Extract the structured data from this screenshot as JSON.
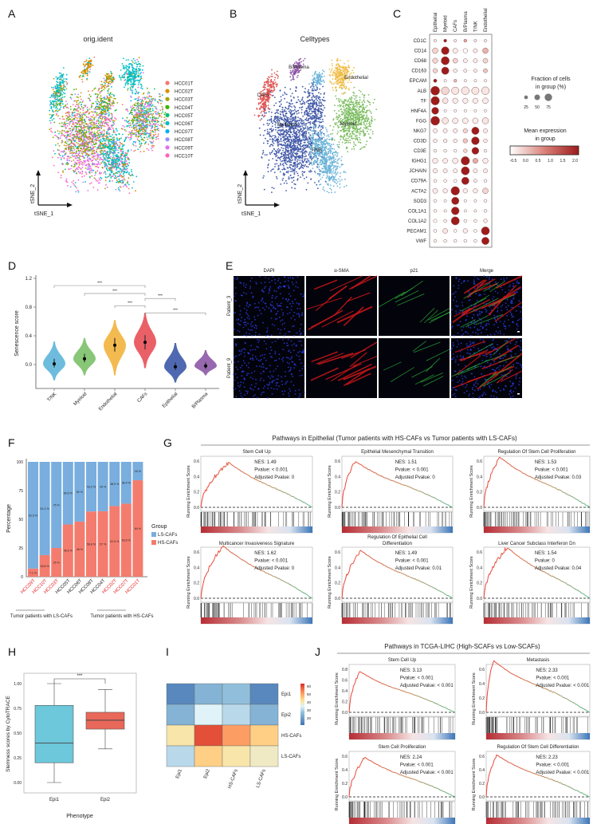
{
  "panel_labels": [
    "A",
    "B",
    "C",
    "D",
    "E",
    "F",
    "G",
    "H",
    "I",
    "J"
  ],
  "chart_data": [
    {
      "type": "scatter",
      "title": "orig.ident",
      "xlabel": "tSNE_1",
      "ylabel": "tSNE_2",
      "legend": [
        {
          "name": "HCC01T",
          "color": "#F8766D"
        },
        {
          "name": "HCC02T",
          "color": "#D89000"
        },
        {
          "name": "HCC03T",
          "color": "#A3A500"
        },
        {
          "name": "HCC04T",
          "color": "#39B600"
        },
        {
          "name": "HCC05T",
          "color": "#00BF7D"
        },
        {
          "name": "HCC06T",
          "color": "#00BFC4"
        },
        {
          "name": "HCC07T",
          "color": "#00B0F6"
        },
        {
          "name": "HCC08T",
          "color": "#9590FF"
        },
        {
          "name": "HCC09T",
          "color": "#E76BF3"
        },
        {
          "name": "HCC10T",
          "color": "#FF62BC"
        }
      ]
    },
    {
      "type": "scatter",
      "title": "Celltypes",
      "xlabel": "tSNE_1",
      "ylabel": "tSNE_2",
      "clusters": [
        {
          "name": "CAFs",
          "color": "#E05555"
        },
        {
          "name": "Epithelial",
          "color": "#4159A8"
        },
        {
          "name": "T/NK",
          "color": "#6CB4D8"
        },
        {
          "name": "Myeloid",
          "color": "#7DBD62"
        },
        {
          "name": "Endothelial",
          "color": "#F0BE4A"
        },
        {
          "name": "B/Plasma",
          "color": "#8E55A8"
        }
      ]
    },
    {
      "type": "dotplot",
      "groups": [
        "Epithelial",
        "Myeloid",
        "CAFs",
        "B/Plasma",
        "T/NK",
        "Endothelial"
      ],
      "genes": [
        "CD1C",
        "CD14",
        "CD68",
        "CD163",
        "EPCAM",
        "ALB",
        "TF",
        "HNF4A",
        "FGG",
        "NKG7",
        "CD3D",
        "CD3E",
        "IGHG1",
        "JCHAIN",
        "CD79A",
        "ACTA2",
        "SOD3",
        "COL1A1",
        "COL1A2",
        "PECAM1",
        "VWF"
      ],
      "expression": [
        [
          -0.3,
          2,
          -0.3,
          0.6,
          -0.3,
          -0.3
        ],
        [
          0,
          2,
          -0.3,
          -0.5,
          -0.3,
          0.4
        ],
        [
          0,
          2,
          0,
          -0.3,
          -0.3,
          0
        ],
        [
          0,
          2,
          -0.3,
          -0.3,
          -0.3,
          0.2
        ],
        [
          2,
          -0.5,
          0.3,
          -0.5,
          -0.5,
          -0.5
        ],
        [
          2,
          0,
          -0.2,
          -0.2,
          -0.2,
          -0.2
        ],
        [
          2,
          -0.2,
          -0.3,
          -0.3,
          -0.3,
          -0.3
        ],
        [
          2,
          -0.5,
          -0.5,
          -0.5,
          -0.5,
          -0.5
        ],
        [
          2,
          -0.2,
          -0.3,
          -0.3,
          -0.3,
          -0.2
        ],
        [
          -0.3,
          -0.3,
          -0.3,
          0,
          2,
          -0.3
        ],
        [
          -0.3,
          -0.3,
          -0.3,
          0.2,
          2,
          -0.3
        ],
        [
          -0.5,
          -0.5,
          -0.5,
          0,
          2,
          -0.5
        ],
        [
          -0.3,
          -0.3,
          -0.3,
          2,
          0.5,
          -0.3
        ],
        [
          -0.3,
          -0.3,
          -0.3,
          2,
          -0.3,
          -0.3
        ],
        [
          -0.5,
          -0.5,
          -0.5,
          2,
          -0.3,
          -0.5
        ],
        [
          -0.3,
          -0.3,
          2,
          -0.3,
          -0.3,
          0
        ],
        [
          -0.5,
          -0.5,
          2,
          -0.5,
          -0.5,
          -0.5
        ],
        [
          -0.5,
          -0.5,
          2,
          -0.5,
          -0.5,
          -0.5
        ],
        [
          -0.5,
          -0.5,
          2,
          -0.5,
          -0.5,
          -0.3
        ],
        [
          -0.5,
          -0.2,
          -0.5,
          -0.3,
          -0.5,
          2
        ],
        [
          -0.5,
          -0.5,
          -0.5,
          -0.5,
          -0.5,
          2
        ]
      ],
      "fraction": [
        [
          10,
          15,
          10,
          15,
          10,
          10
        ],
        [
          50,
          80,
          40,
          35,
          30,
          50
        ],
        [
          45,
          85,
          40,
          30,
          30,
          40
        ],
        [
          35,
          75,
          25,
          20,
          20,
          30
        ],
        [
          20,
          10,
          15,
          10,
          10,
          10
        ],
        [
          95,
          80,
          75,
          80,
          75,
          80
        ],
        [
          90,
          50,
          45,
          45,
          45,
          50
        ],
        [
          70,
          10,
          10,
          10,
          10,
          10
        ],
        [
          95,
          60,
          50,
          50,
          50,
          60
        ],
        [
          30,
          30,
          30,
          35,
          75,
          30
        ],
        [
          25,
          25,
          25,
          35,
          80,
          25
        ],
        [
          15,
          15,
          15,
          25,
          70,
          15
        ],
        [
          45,
          40,
          50,
          90,
          45,
          45
        ],
        [
          35,
          30,
          30,
          85,
          30,
          30
        ],
        [
          15,
          15,
          15,
          75,
          20,
          15
        ],
        [
          40,
          35,
          90,
          35,
          35,
          50
        ],
        [
          15,
          10,
          75,
          10,
          10,
          15
        ],
        [
          15,
          10,
          80,
          10,
          10,
          15
        ],
        [
          20,
          15,
          85,
          15,
          15,
          25
        ],
        [
          15,
          40,
          15,
          35,
          15,
          85
        ],
        [
          15,
          15,
          15,
          15,
          15,
          75
        ]
      ],
      "size_legend": {
        "title1": "Fraction of cells",
        "title2": "in group (%)",
        "values": [
          "25",
          "50",
          "75"
        ]
      },
      "color_legend": {
        "title1": "Mean expression",
        "title2": "in group",
        "ticks": [
          "-0.5",
          "0.0",
          "0.5",
          "1.0",
          "1.5",
          "2.0"
        ],
        "low": "#FFFFFF",
        "high": "#9E1B1B"
      }
    },
    {
      "type": "violin",
      "ylabel": "Senescence score",
      "categories": [
        "T/NK",
        "Myeloid",
        "Endothelial",
        "CAFs",
        "Epithelial",
        "B/Plasma"
      ],
      "colors": [
        "#62B6DA",
        "#7DC26B",
        "#F2B441",
        "#E8525A",
        "#3F5CAA",
        "#8E5BA8"
      ],
      "medians": [
        0.01,
        0.08,
        0.27,
        0.31,
        -0.03,
        -0.02
      ],
      "q1": [
        -0.04,
        0.03,
        0.18,
        0.21,
        -0.08,
        -0.06
      ],
      "q3": [
        0.08,
        0.15,
        0.37,
        0.41,
        0.03,
        0.03
      ],
      "min": [
        -0.22,
        -0.15,
        -0.15,
        -0.05,
        -0.25,
        -0.15
      ],
      "max": [
        0.32,
        0.37,
        0.62,
        0.72,
        0.3,
        0.2
      ],
      "yticks": [
        "0.0",
        "0.4",
        "0.8",
        "1.2"
      ],
      "ylim": [
        -0.33,
        1.25
      ],
      "comparisons": [
        {
          "a": 0,
          "b": 3,
          "y": 1.1,
          "label": "***"
        },
        {
          "a": 1,
          "b": 3,
          "y": 0.99,
          "label": "***"
        },
        {
          "a": 2,
          "b": 3,
          "y": 0.82,
          "label": "***"
        },
        {
          "a": 3,
          "b": 4,
          "y": 0.92,
          "label": "***"
        },
        {
          "a": 3,
          "b": 5,
          "y": 0.72,
          "label": "***"
        }
      ]
    },
    {
      "type": "image_grid",
      "columns": [
        "DAPI",
        "α-SMA",
        "p21",
        "Merge"
      ],
      "rows": [
        "Patient_3",
        "Patient_9"
      ]
    },
    {
      "type": "bar",
      "stacked": true,
      "ylabel": "Percentage",
      "categories": [
        "HCC09T",
        "HCC10T",
        "HCC03T",
        "HCC05T",
        "HCC06T",
        "HCC08T",
        "HCC04T",
        "HCC02T",
        "HCC07T",
        "HCC01T"
      ],
      "highlighted": [
        true,
        true,
        true,
        false,
        false,
        false,
        false,
        true,
        true,
        true
      ],
      "series": [
        {
          "name": "HS-CAFs",
          "color": "#F47C6E",
          "values": [
            7.1,
            18.8,
            25,
            45.5,
            48,
            56.8,
            57,
            61.5,
            63.6,
            84
          ],
          "labels": [
            "7.1 %",
            "18.8 %",
            "25 %",
            "45.5 %",
            "48 %",
            "56.8 %",
            "57 %",
            "61.5 %",
            "63.6 %",
            "84 %"
          ]
        },
        {
          "name": "LS-CAFs",
          "color": "#79AEDE",
          "values": [
            92.9,
            81.2,
            75,
            54.5,
            52,
            43.2,
            43,
            38.5,
            36.4,
            16
          ],
          "labels": [
            "92.9 %",
            "81.2 %",
            "75 %",
            "54.5 %",
            "52 %",
            "43.2 %",
            "43 %",
            "38.5 %",
            "36.4 %",
            "16 %"
          ]
        }
      ],
      "yticks": [
        "0",
        "25",
        "50",
        "75",
        "100"
      ],
      "legend_title": "Group",
      "legend": [
        "LS-CAFs",
        "HS-CAFs"
      ],
      "group_labels": [
        "Tumor patients with LS-CAFs",
        "Tumor patients with HS-CAFs"
      ],
      "highlight_color": "#E8262B"
    },
    {
      "type": "line",
      "title": "Pathways in Epithelial (Tumor patients with HS-CAFs vs Tumor patients with LS-CAFs)",
      "ylabel": "Running Enrichment Score",
      "panels": [
        {
          "title": [
            "Stem Cell Up"
          ],
          "nes": "NES: 1.49",
          "pvalue": "Pvalue: < 0.001",
          "adj": "Adjusted Pvalue: 0",
          "peak": 0.58,
          "peak_at": 0.25,
          "yticks": [
            "0.0",
            "0.2",
            "0.4",
            "0.6"
          ]
        },
        {
          "title": [
            "Epithelial Mesenchymal Transition"
          ],
          "nes": "NES: 1.51",
          "pvalue": "Pvalue: < 0.001",
          "adj": "Adjusted Pvalue: 0",
          "peak": 0.6,
          "peak_at": 0.12,
          "yticks": [
            "0.0",
            "0.2",
            "0.4",
            "0.6"
          ]
        },
        {
          "title": [
            "Regulation Of Stem Cell Proliferation"
          ],
          "nes": "NES: 1.53",
          "pvalue": "Pvalue: < 0.001",
          "adj": "Adjusted Pvalue: 0.03",
          "peak": 0.65,
          "peak_at": 0.15,
          "yticks": [
            "0.0",
            "0.2",
            "0.4",
            "0.6"
          ]
        },
        {
          "title": [
            "Multicancer Invasiveness Signature"
          ],
          "nes": "NES: 1.62",
          "pvalue": "Pvalue: < 0.001",
          "adj": "Adjusted Pvalue: 0",
          "peak": 0.68,
          "peak_at": 0.2,
          "yticks": [
            "0.0",
            "0.2",
            "0.4",
            "0.6"
          ]
        },
        {
          "title": [
            "Regulation Of Epithelial Cell",
            "Differentiation"
          ],
          "nes": "NES: 1.49",
          "pvalue": "Pvalue: < 0.001",
          "adj": "Adjusted Pvalue: 0.01",
          "peak": 0.62,
          "peak_at": 0.17,
          "yticks": [
            "0.0",
            "0.2",
            "0.4",
            "0.6"
          ]
        },
        {
          "title": [
            "Liver Cancer Subclass Interferon Dn"
          ],
          "nes": "NES: 1.54",
          "pvalue": "Pvalue: 0",
          "adj": "Adjusted Pvalue: 0.04",
          "peak": 0.66,
          "peak_at": 0.22,
          "yticks": [
            "0.0",
            "0.2",
            "0.4",
            "0.6"
          ]
        }
      ]
    },
    {
      "type": "box",
      "ylabel": "Stemness scores by CytoTRACE",
      "xlabel": "Phenotype",
      "categories": [
        "Epi1",
        "Epi2"
      ],
      "colors": [
        "#6CC8DA",
        "#E8685A"
      ],
      "min": [
        0.0,
        0.34
      ],
      "q1": [
        0.2,
        0.54
      ],
      "median": [
        0.4,
        0.63
      ],
      "q3": [
        0.78,
        0.71
      ],
      "max": [
        1.0,
        0.94
      ],
      "yticks": [
        "0.00",
        "0.25",
        "0.50",
        "0.75",
        "1.00"
      ],
      "significance": "***"
    },
    {
      "type": "heatmap",
      "rows": [
        "Epi1",
        "Epi2",
        "HS-CAFs",
        "LS-CAFs"
      ],
      "cols": [
        "Epi1",
        "Epi2",
        "HS-CAFs",
        "LS-CAFs"
      ],
      "values": [
        [
          15,
          22,
          24,
          15
        ],
        [
          22,
          32,
          28,
          22
        ],
        [
          38,
          58,
          48,
          42
        ],
        [
          28,
          42,
          38,
          36
        ]
      ],
      "colorbar_ticks": [
        "60",
        "50",
        "40",
        "30",
        "20"
      ],
      "range": [
        12,
        62
      ]
    },
    {
      "type": "line",
      "title": "Pathways in TCGA-LIHC (High-SCAFs vs Low-SCAFs)",
      "ylabel": "Running Enrichment Score",
      "panels": [
        {
          "title": [
            "Stem Cell Up"
          ],
          "nes": "NES: 3.13",
          "pvalue": "Pvalue: < 0.001",
          "adj": "Adjusted Pvalue: < 0.001",
          "peak": 0.76,
          "peak_at": 0.1,
          "yticks": [
            "0.0",
            "0.2",
            "0.4",
            "0.6",
            "0.8"
          ]
        },
        {
          "title": [
            "Metastasis"
          ],
          "nes": "NES: 2.33",
          "pvalue": "Pvalue: < 0.001",
          "adj": "Adjusted Pvalue: < 0.001",
          "peak": 0.72,
          "peak_at": 0.07,
          "yticks": [
            "0.0",
            "0.2",
            "0.4",
            "0.6"
          ]
        },
        {
          "title": [
            "Stem Cell Proliferation"
          ],
          "nes": "NES: 2.24",
          "pvalue": "Pvalue: < 0.001",
          "adj": "Adjusted Pvalue: < 0.001",
          "peak": 0.58,
          "peak_at": 0.15,
          "yticks": [
            "0.0",
            "0.2",
            "0.4",
            "0.6"
          ]
        },
        {
          "title": [
            "Regulation Of Stem Cell Differentiation"
          ],
          "nes": "NES: 2.23",
          "pvalue": "Pvalue: < 0.001",
          "adj": "Adjusted Pvalue: < 0.001",
          "peak": 0.62,
          "peak_at": 0.1,
          "yticks": [
            "0.0",
            "0.2",
            "0.4",
            "0.6"
          ]
        }
      ]
    }
  ]
}
